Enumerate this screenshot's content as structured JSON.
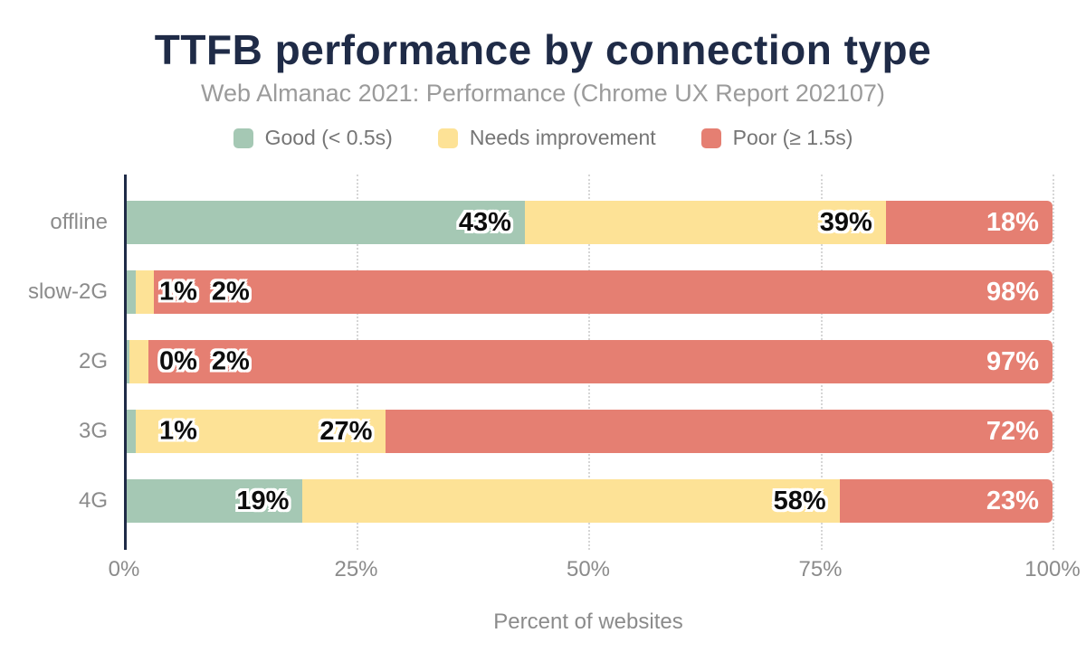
{
  "title": "TTFB performance by connection type",
  "subtitle": "Web Almanac 2021: Performance (Chrome UX Report 202107)",
  "colors": {
    "title_navy": "#1f2b47",
    "axis_navy": "#1f2b47",
    "muted_gray": "#8b8b8b",
    "good_green": "#a5c8b4",
    "needs_yellow": "#fde296",
    "poor_red": "#e57f72",
    "gridline": "#d6d6d6"
  },
  "legend": [
    {
      "label": "Good (< 0.5s)",
      "color": "#a5c8b4"
    },
    {
      "label": "Needs improvement",
      "color": "#fde296"
    },
    {
      "label": "Poor (≥ 1.5s)",
      "color": "#e57f72"
    }
  ],
  "chart_data": {
    "type": "bar",
    "orientation": "horizontal",
    "stacked": true,
    "title": "TTFB performance by connection type",
    "subtitle": "Web Almanac 2021: Performance (Chrome UX Report 202107)",
    "categories": [
      "offline",
      "slow-2G",
      "2G",
      "3G",
      "4G"
    ],
    "series": [
      {
        "name": "Good (< 0.5s)",
        "color": "#a5c8b4",
        "values": [
          43,
          1,
          0,
          1,
          19
        ]
      },
      {
        "name": "Needs improvement",
        "color": "#fde296",
        "values": [
          39,
          2,
          2,
          27,
          58
        ]
      },
      {
        "name": "Poor (≥ 1.5s)",
        "color": "#e57f72",
        "values": [
          18,
          98,
          97,
          72,
          23
        ]
      }
    ],
    "data_label_suffix": "%",
    "xlabel": "Percent of websites",
    "x_ticks": [
      "0%",
      "25%",
      "50%",
      "75%",
      "100%"
    ],
    "xlim": [
      0,
      100
    ],
    "grid": "dotted-vertical",
    "legend_position": "top"
  }
}
